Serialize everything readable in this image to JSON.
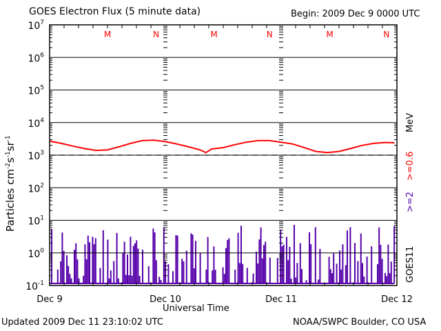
{
  "chart_data": {
    "type": "line",
    "title": "GOES Electron Flux (5 minute data)",
    "begin_label": "Begin: 2009 Dec 9 0000 UTC",
    "xlabel": "Universal Time",
    "ylabel": "Particles cm",
    "ylabel_parts": [
      "Particles cm",
      "-2",
      "s",
      "-1",
      "sr",
      "-1"
    ],
    "yscale": "log",
    "ylim_exp": [
      -1,
      7
    ],
    "ytick_exponents": [
      "7",
      "6",
      "5",
      "4",
      "3",
      "2",
      "1",
      "0",
      "-1"
    ],
    "ytick_base": "10",
    "xlim_days": [
      0,
      3
    ],
    "xtick_labels": [
      "Dec 9",
      "Dec 10",
      "Dec 11",
      "Dec 12"
    ],
    "mn_markers": [
      {
        "label": "M",
        "day": 0.5
      },
      {
        "label": "N",
        "day": 0.92
      },
      {
        "label": "M",
        "day": 1.42
      },
      {
        "label": "N",
        "day": 1.9
      },
      {
        "label": "M",
        "day": 2.42
      },
      {
        "label": "N",
        "day": 2.91
      }
    ],
    "threshold": {
      "value": 1000,
      "style": "dashed"
    },
    "series": [
      {
        "name": ">=0.6",
        "color": "#ff0000",
        "x_days": [
          0.0,
          0.1,
          0.2,
          0.3,
          0.4,
          0.5,
          0.6,
          0.7,
          0.8,
          0.9,
          1.0,
          1.1,
          1.2,
          1.3,
          1.35,
          1.4,
          1.5,
          1.6,
          1.7,
          1.8,
          1.9,
          2.0,
          2.1,
          2.2,
          2.3,
          2.4,
          2.5,
          2.6,
          2.7,
          2.8,
          2.9,
          2.98
        ],
        "values": [
          2700,
          2300,
          1900,
          1600,
          1400,
          1450,
          1800,
          2300,
          2800,
          2900,
          2600,
          2200,
          1800,
          1450,
          1200,
          1550,
          1700,
          2100,
          2500,
          2800,
          2800,
          2500,
          2200,
          1700,
          1300,
          1200,
          1300,
          1600,
          2000,
          2300,
          2450,
          2400
        ]
      },
      {
        "name": ">=2",
        "color": "#5500aa",
        "style": "spikes",
        "values_exp_seed": 11
      }
    ],
    "right_labels": {
      "satellite": "GOES11",
      "energy_2": ">=2",
      "energy_06": ">=0.6",
      "unit": "MeV"
    }
  },
  "footer": {
    "updated": "Updated 2009 Dec 11 23:10:02 UTC",
    "source": "NOAA/SWPC Boulder, CO USA"
  },
  "colors": {
    "red": "#ff0000",
    "purple": "#5500aa",
    "axis": "#000000"
  }
}
